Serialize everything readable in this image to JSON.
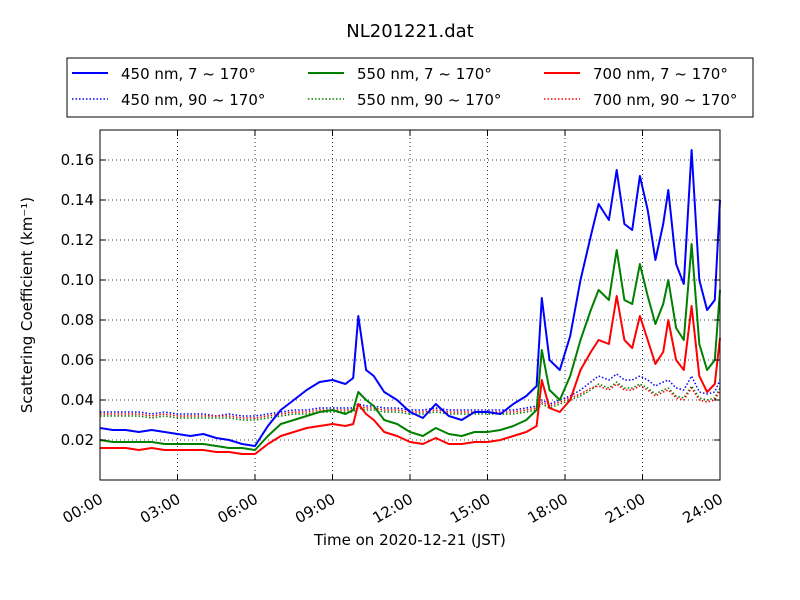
{
  "chart_data": {
    "type": "line",
    "title": "NL201221.dat",
    "xlabel": "Time on 2020-12-21 (JST)",
    "ylabel": "Scattering Coefficient (km⁻¹)",
    "xlim": [
      0,
      24
    ],
    "ylim": [
      0.0,
      0.175
    ],
    "x_ticks": [
      "00:00",
      "03:00",
      "06:00",
      "09:00",
      "12:00",
      "15:00",
      "18:00",
      "21:00",
      "24:00"
    ],
    "y_ticks": [
      "0.02",
      "0.04",
      "0.06",
      "0.08",
      "0.10",
      "0.12",
      "0.14",
      "0.16"
    ],
    "grid": true,
    "legend_position": "top",
    "x_hours": [
      0,
      0.5,
      1,
      1.5,
      2,
      2.5,
      3,
      3.5,
      4,
      4.5,
      5,
      5.5,
      6,
      6.5,
      7,
      7.5,
      8,
      8.5,
      9,
      9.5,
      9.8,
      10,
      10.3,
      10.6,
      11,
      11.5,
      12,
      12.5,
      13,
      13.5,
      14,
      14.5,
      15,
      15.5,
      16,
      16.5,
      16.9,
      17.1,
      17.4,
      17.8,
      18.2,
      18.6,
      19,
      19.3,
      19.7,
      20,
      20.3,
      20.6,
      20.9,
      21.2,
      21.5,
      21.8,
      22,
      22.3,
      22.6,
      22.9,
      23.2,
      23.5,
      23.8,
      24
    ],
    "series": [
      {
        "name": "450 nm, 7 ~ 170°",
        "color": "#0000ff",
        "style": "solid",
        "values": [
          0.026,
          0.025,
          0.025,
          0.024,
          0.025,
          0.024,
          0.023,
          0.022,
          0.023,
          0.021,
          0.02,
          0.018,
          0.017,
          0.027,
          0.035,
          0.04,
          0.045,
          0.049,
          0.05,
          0.048,
          0.051,
          0.082,
          0.055,
          0.052,
          0.044,
          0.04,
          0.034,
          0.031,
          0.038,
          0.032,
          0.03,
          0.034,
          0.034,
          0.033,
          0.038,
          0.042,
          0.047,
          0.091,
          0.06,
          0.055,
          0.072,
          0.1,
          0.122,
          0.138,
          0.13,
          0.155,
          0.128,
          0.125,
          0.152,
          0.135,
          0.11,
          0.128,
          0.145,
          0.108,
          0.098,
          0.165,
          0.1,
          0.085,
          0.09,
          0.14
        ]
      },
      {
        "name": "550 nm, 7 ~ 170°",
        "color": "#008000",
        "style": "solid",
        "values": [
          0.02,
          0.019,
          0.019,
          0.019,
          0.019,
          0.018,
          0.018,
          0.018,
          0.018,
          0.017,
          0.016,
          0.016,
          0.015,
          0.022,
          0.028,
          0.03,
          0.032,
          0.034,
          0.035,
          0.033,
          0.035,
          0.044,
          0.04,
          0.037,
          0.03,
          0.028,
          0.024,
          0.022,
          0.026,
          0.023,
          0.022,
          0.024,
          0.024,
          0.025,
          0.027,
          0.03,
          0.035,
          0.065,
          0.045,
          0.04,
          0.052,
          0.07,
          0.085,
          0.095,
          0.09,
          0.115,
          0.09,
          0.088,
          0.108,
          0.092,
          0.078,
          0.088,
          0.1,
          0.076,
          0.07,
          0.118,
          0.068,
          0.055,
          0.06,
          0.095
        ]
      },
      {
        "name": "700 nm, 7 ~ 170°",
        "color": "#ff0000",
        "style": "solid",
        "values": [
          0.016,
          0.016,
          0.016,
          0.015,
          0.016,
          0.015,
          0.015,
          0.015,
          0.015,
          0.014,
          0.014,
          0.013,
          0.013,
          0.018,
          0.022,
          0.024,
          0.026,
          0.027,
          0.028,
          0.027,
          0.028,
          0.038,
          0.033,
          0.03,
          0.024,
          0.022,
          0.019,
          0.018,
          0.021,
          0.018,
          0.018,
          0.019,
          0.019,
          0.02,
          0.022,
          0.024,
          0.027,
          0.05,
          0.036,
          0.034,
          0.04,
          0.055,
          0.064,
          0.07,
          0.068,
          0.092,
          0.07,
          0.066,
          0.082,
          0.07,
          0.058,
          0.064,
          0.08,
          0.06,
          0.055,
          0.087,
          0.052,
          0.044,
          0.048,
          0.071
        ]
      },
      {
        "name": "450 nm, 90 ~ 170°",
        "color": "#0000ff",
        "style": "dotted",
        "values": [
          0.034,
          0.034,
          0.034,
          0.034,
          0.033,
          0.034,
          0.033,
          0.033,
          0.033,
          0.032,
          0.033,
          0.032,
          0.032,
          0.033,
          0.034,
          0.035,
          0.035,
          0.036,
          0.036,
          0.036,
          0.036,
          0.038,
          0.037,
          0.037,
          0.036,
          0.036,
          0.035,
          0.035,
          0.036,
          0.035,
          0.035,
          0.035,
          0.035,
          0.035,
          0.035,
          0.036,
          0.037,
          0.04,
          0.038,
          0.04,
          0.042,
          0.045,
          0.049,
          0.052,
          0.05,
          0.053,
          0.05,
          0.05,
          0.052,
          0.05,
          0.047,
          0.049,
          0.05,
          0.046,
          0.045,
          0.052,
          0.044,
          0.043,
          0.044,
          0.05
        ]
      },
      {
        "name": "550 nm, 90 ~ 170°",
        "color": "#008000",
        "style": "dotted",
        "values": [
          0.032,
          0.032,
          0.032,
          0.032,
          0.031,
          0.032,
          0.031,
          0.031,
          0.031,
          0.031,
          0.031,
          0.03,
          0.03,
          0.031,
          0.032,
          0.033,
          0.033,
          0.034,
          0.034,
          0.034,
          0.034,
          0.036,
          0.035,
          0.035,
          0.034,
          0.034,
          0.033,
          0.033,
          0.034,
          0.033,
          0.033,
          0.033,
          0.033,
          0.033,
          0.033,
          0.034,
          0.035,
          0.038,
          0.036,
          0.038,
          0.04,
          0.042,
          0.045,
          0.048,
          0.046,
          0.049,
          0.046,
          0.046,
          0.048,
          0.046,
          0.043,
          0.045,
          0.046,
          0.042,
          0.041,
          0.047,
          0.041,
          0.04,
          0.041,
          0.046
        ]
      },
      {
        "name": "700 nm, 90 ~ 170°",
        "color": "#ff0000",
        "style": "dotted",
        "values": [
          0.033,
          0.033,
          0.033,
          0.033,
          0.032,
          0.033,
          0.032,
          0.032,
          0.032,
          0.032,
          0.032,
          0.031,
          0.031,
          0.032,
          0.033,
          0.034,
          0.034,
          0.035,
          0.035,
          0.035,
          0.035,
          0.037,
          0.036,
          0.036,
          0.035,
          0.035,
          0.034,
          0.034,
          0.035,
          0.034,
          0.034,
          0.034,
          0.034,
          0.034,
          0.034,
          0.035,
          0.036,
          0.039,
          0.037,
          0.039,
          0.041,
          0.043,
          0.046,
          0.047,
          0.045,
          0.048,
          0.045,
          0.045,
          0.047,
          0.045,
          0.042,
          0.044,
          0.045,
          0.041,
          0.04,
          0.046,
          0.04,
          0.039,
          0.04,
          0.045
        ]
      }
    ]
  }
}
